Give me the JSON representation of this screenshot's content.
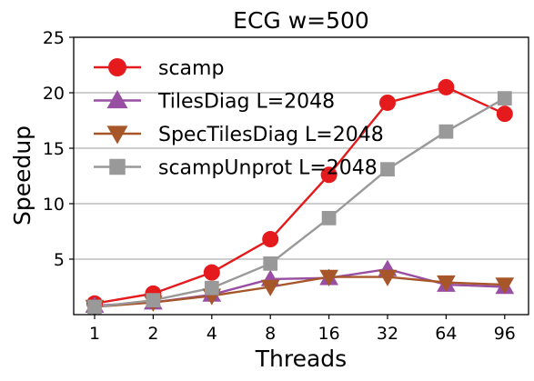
{
  "chart_data": {
    "type": "line",
    "title": "ECG w=500",
    "xlabel": "Threads",
    "ylabel": "Speedup",
    "categories": [
      "1",
      "2",
      "4",
      "8",
      "16",
      "32",
      "64",
      "96"
    ],
    "ylim": [
      0,
      25
    ],
    "yticks": [
      5,
      10,
      15,
      20,
      25
    ],
    "grid": "horizontal",
    "legend_position": "top-left",
    "series": [
      {
        "name": "scamp",
        "color": "#e41a1c",
        "marker": "circle",
        "values": [
          1.0,
          1.9,
          3.8,
          6.8,
          12.6,
          19.1,
          20.5,
          18.1
        ]
      },
      {
        "name": "TilesDiag L=2048",
        "color": "#984ea3",
        "marker": "triangle-up",
        "values": [
          0.8,
          1.1,
          1.8,
          3.2,
          3.3,
          4.1,
          2.7,
          2.5
        ]
      },
      {
        "name": "SpecTilesDiag L=2048",
        "color": "#a65628",
        "marker": "triangle-down",
        "values": [
          0.7,
          1.1,
          1.7,
          2.5,
          3.4,
          3.4,
          2.9,
          2.7
        ]
      },
      {
        "name": "scampUnprot L=2048",
        "color": "#999999",
        "marker": "square",
        "values": [
          0.7,
          1.3,
          2.4,
          4.6,
          8.7,
          13.1,
          16.5,
          19.5
        ]
      }
    ]
  }
}
